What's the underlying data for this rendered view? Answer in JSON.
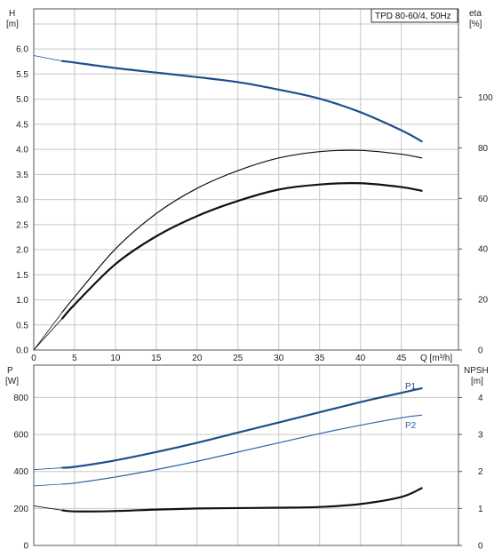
{
  "colors": {
    "grid": "#c8c8c8",
    "axis": "#555555",
    "head_curve": "#1f4e8c",
    "efficiency": "#111111",
    "power_p1": "#1f4e8c",
    "power_p2": "#2a65a8",
    "npsh": "#111111"
  },
  "chart_data": [
    {
      "type": "line",
      "title": "TPD 80-60/4, 50Hz",
      "xlabel": "Q [m³/h]",
      "ylabel_left_name": "H",
      "ylabel_left_unit": "[m]",
      "ylabel_right_name": "eta",
      "ylabel_right_unit": "[%]",
      "xlim": [
        0,
        52
      ],
      "ylim": [
        0,
        6.8
      ],
      "ylim_right": [
        0,
        135
      ],
      "grid": true,
      "x_ticks": [
        "0",
        "5",
        "10",
        "15",
        "20",
        "25",
        "30",
        "35",
        "40",
        "45"
      ],
      "y_ticks": [
        "0.0",
        "0.5",
        "1.0",
        "1.5",
        "2.0",
        "2.5",
        "3.0",
        "3.5",
        "4.0",
        "4.5",
        "5.0",
        "5.5",
        "6.0"
      ],
      "y_right_ticks": [
        "0",
        "20",
        "40",
        "60",
        "80",
        "100"
      ],
      "series": [
        {
          "key": "head",
          "axis": "left",
          "extrapolated_x": [
            0,
            3.5
          ],
          "extrapolated_y": [
            5.87,
            5.76
          ],
          "x": [
            3.5,
            5,
            10,
            15,
            20,
            25,
            30,
            35,
            40,
            45,
            47.5
          ],
          "y": [
            5.76,
            5.73,
            5.62,
            5.53,
            5.44,
            5.34,
            5.19,
            5.01,
            4.74,
            4.38,
            4.16
          ]
        },
        {
          "key": "eta_thin",
          "axis": "right",
          "extrapolated_x": [
            0,
            3.5
          ],
          "extrapolated_y": [
            0,
            15
          ],
          "x": [
            3.5,
            5,
            10,
            15,
            20,
            25,
            30,
            35,
            40,
            45,
            47.5
          ],
          "y": [
            15,
            21,
            40,
            54,
            64,
            71,
            76,
            78.5,
            79,
            77.5,
            76
          ]
        },
        {
          "key": "eta_thick",
          "axis": "right",
          "extrapolated_x": [
            0,
            3.5
          ],
          "extrapolated_y": [
            0,
            12.5
          ],
          "x": [
            3.5,
            5,
            10,
            15,
            20,
            25,
            30,
            35,
            40,
            45,
            47.5
          ],
          "y": [
            12.5,
            18,
            34,
            45,
            53,
            59,
            63.5,
            65.5,
            66,
            64.5,
            63
          ]
        }
      ]
    },
    {
      "type": "line",
      "xlabel": "",
      "ylabel_left_name": "P",
      "ylabel_left_unit": "[W]",
      "ylabel_right_name": "NPSH",
      "ylabel_right_unit": "[m]",
      "xlim": [
        0,
        52
      ],
      "ylim": [
        0,
        975
      ],
      "ylim_right": [
        0,
        4.875
      ],
      "grid": true,
      "y_ticks": [
        "0",
        "200",
        "400",
        "600",
        "800"
      ],
      "y_right_ticks": [
        "0",
        "1",
        "2",
        "3",
        "4"
      ],
      "series": [
        {
          "name": "P1",
          "key": "p1",
          "axis": "left",
          "extrapolated_x": [
            0,
            3.5
          ],
          "extrapolated_y": [
            410,
            420
          ],
          "x": [
            3.5,
            5,
            10,
            15,
            20,
            25,
            30,
            35,
            40,
            45,
            47.5
          ],
          "y": [
            420,
            425,
            460,
            505,
            555,
            610,
            665,
            720,
            775,
            825,
            850
          ]
        },
        {
          "name": "P2",
          "key": "p2",
          "axis": "left",
          "extrapolated_x": [
            0,
            3.5
          ],
          "extrapolated_y": [
            322,
            332
          ],
          "x": [
            3.5,
            5,
            10,
            15,
            20,
            25,
            30,
            35,
            40,
            45,
            47.5
          ],
          "y": [
            332,
            337,
            370,
            410,
            455,
            505,
            555,
            605,
            650,
            690,
            705
          ]
        },
        {
          "key": "npsh",
          "axis": "right",
          "extrapolated_x": [
            0,
            3.5
          ],
          "extrapolated_y": [
            1.07,
            0.95
          ],
          "x": [
            3.5,
            5,
            10,
            15,
            20,
            25,
            30,
            35,
            40,
            45,
            47.5
          ],
          "y": [
            0.95,
            0.92,
            0.93,
            0.97,
            1.0,
            1.01,
            1.02,
            1.04,
            1.12,
            1.31,
            1.55
          ]
        }
      ]
    }
  ]
}
